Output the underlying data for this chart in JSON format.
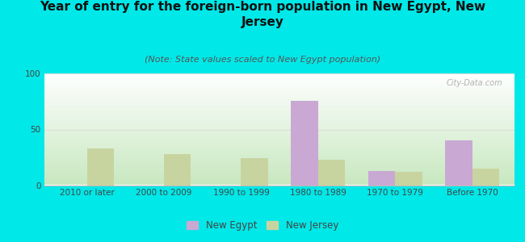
{
  "title": "Year of entry for the foreign-born population in New Egypt, New\nJersey",
  "subtitle": "(Note: State values scaled to New Egypt population)",
  "categories": [
    "2010 or later",
    "2000 to 2009",
    "1990 to 1999",
    "1980 to 1989",
    "1970 to 1979",
    "Before 1970"
  ],
  "new_egypt": [
    0,
    0,
    0,
    76,
    13,
    40
  ],
  "new_jersey": [
    33,
    28,
    24,
    23,
    12,
    15
  ],
  "new_egypt_color": "#c9a8d4",
  "new_jersey_color": "#c8d4a0",
  "bg_outer": "#00e8e8",
  "bg_plot_grad_top": "#ffffff",
  "bg_plot_grad_bottom": "#c8e8c0",
  "ylim": [
    0,
    100
  ],
  "yticks": [
    0,
    50,
    100
  ],
  "title_fontsize": 11,
  "subtitle_fontsize": 8,
  "tick_fontsize": 7.5,
  "legend_fontsize": 8.5,
  "bar_width": 0.35,
  "watermark": "City-Data.com"
}
